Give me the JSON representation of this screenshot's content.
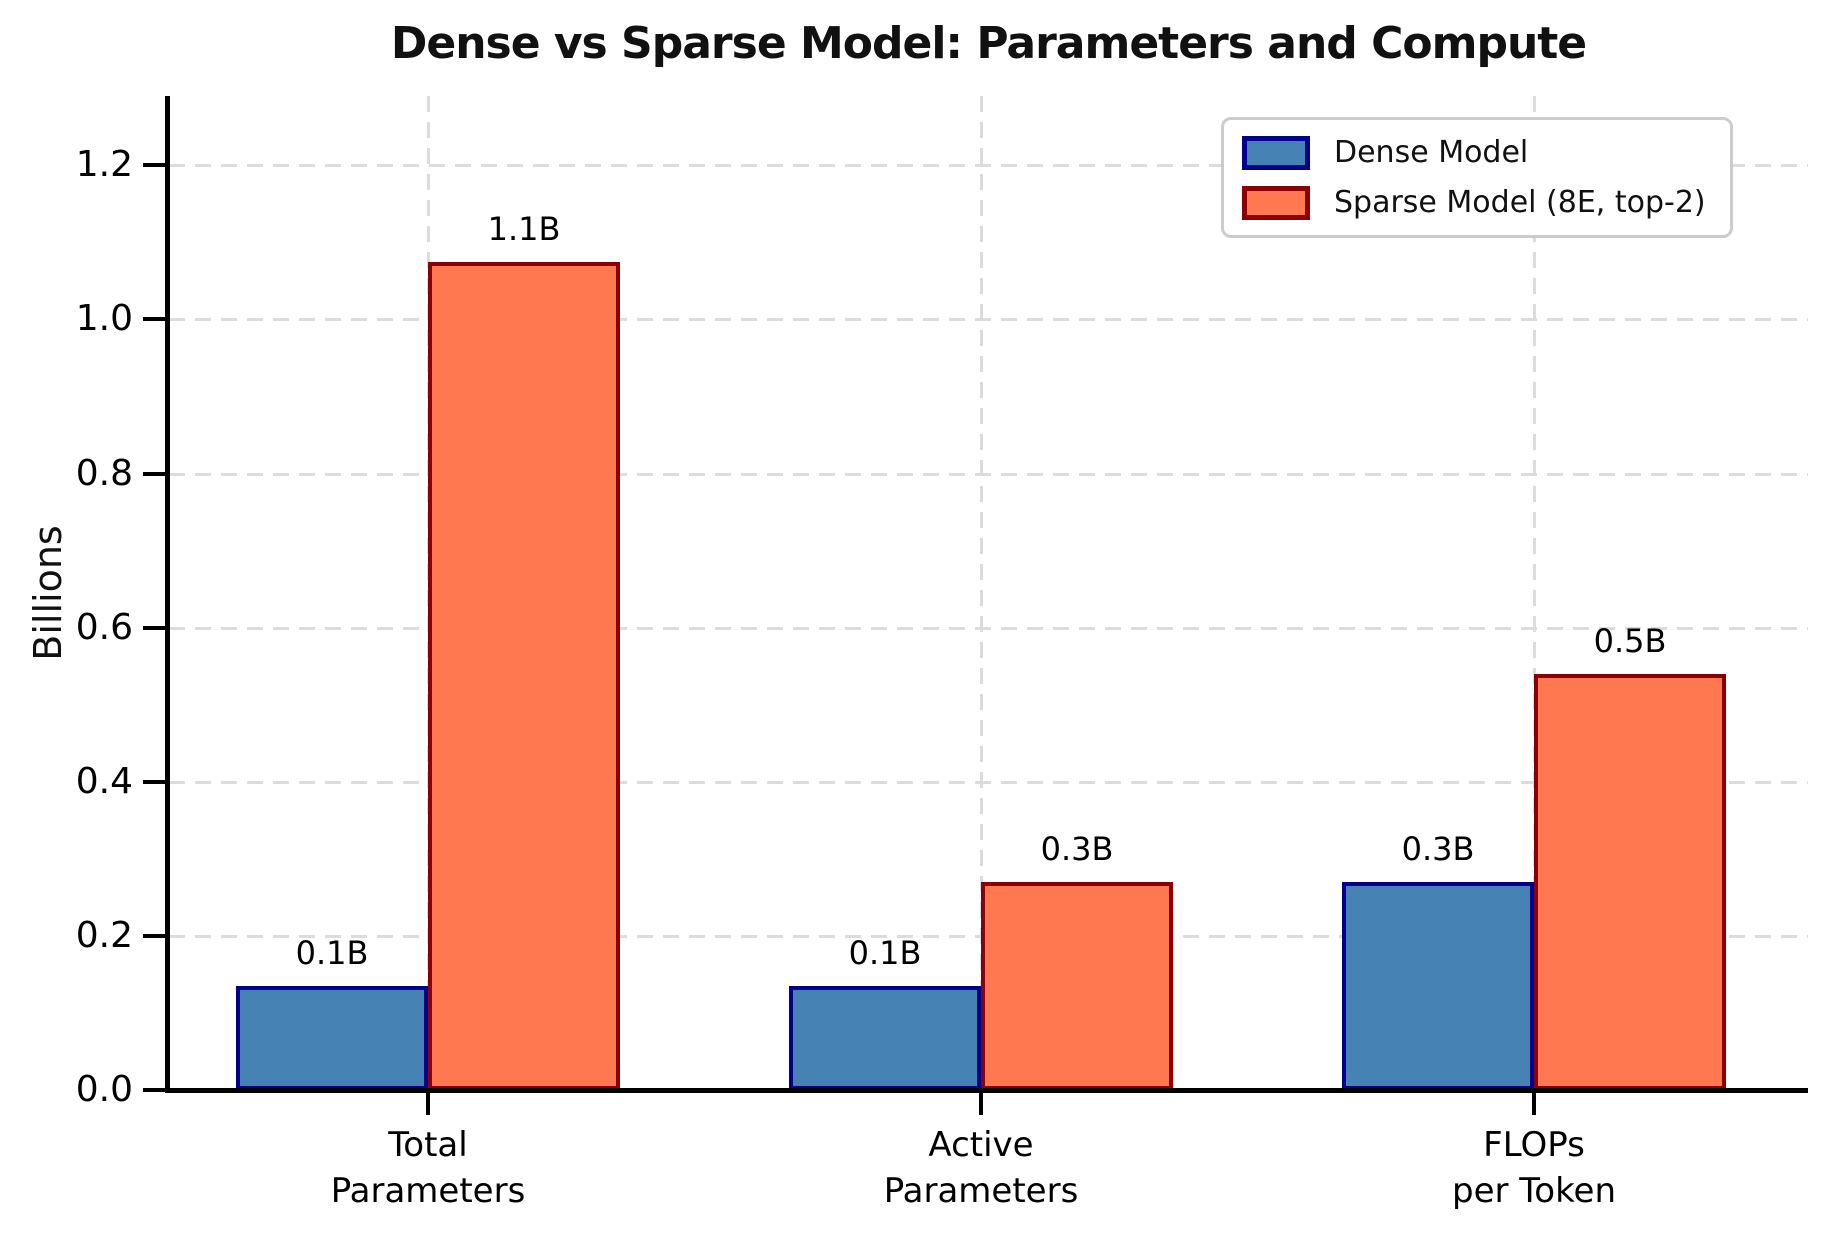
{
  "chart_data": {
    "type": "bar",
    "title": "Dense vs Sparse Model: Parameters and Compute",
    "ylabel": "Billions",
    "xlabel": "",
    "categories": [
      "Total\nParameters",
      "Active\nParameters",
      "FLOPs\nper Token"
    ],
    "series": [
      {
        "name": "Dense Model",
        "fill_color": "#4682B4",
        "edge_color": "#00008B",
        "values": [
          0.135,
          0.135,
          0.27
        ],
        "bar_labels": [
          "0.1B",
          "0.1B",
          "0.3B"
        ]
      },
      {
        "name": "Sparse Model (8E, top-2)",
        "fill_color": "#FF7850",
        "edge_color": "#8B0000",
        "values": [
          1.075,
          0.27,
          0.54
        ],
        "bar_labels": [
          "1.1B",
          "0.3B",
          "0.5B"
        ]
      }
    ],
    "y_ticks": [
      "0.0",
      "0.2",
      "0.4",
      "0.6",
      "0.8",
      "1.0",
      "1.2"
    ],
    "ylim": [
      0.0,
      1.29
    ],
    "grid": "dashed light-gray horizontal lines at y ticks and vertical lines at category centers",
    "legend_position": "upper right"
  }
}
